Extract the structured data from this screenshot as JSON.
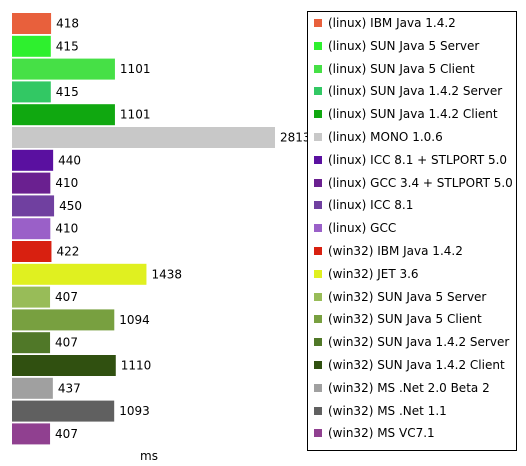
{
  "chart_data": {
    "type": "bar",
    "orientation": "horizontal",
    "xlabel": "ms",
    "xlim": [
      0,
      2813
    ],
    "grid": false,
    "legend_position": "right",
    "categories": [
      "(linux) IBM Java 1.4.2",
      "(linux) SUN Java 5 Server",
      "(linux) SUN Java 5 Client",
      "(linux) SUN Java 1.4.2 Server",
      "(linux) SUN Java 1.4.2 Client",
      "(linux) MONO 1.0.6",
      "(linux) ICC 8.1 + STLPORT 5.0",
      "(linux) GCC 3.4 + STLPORT 5.0",
      "(linux) ICC 8.1",
      "(linux) GCC",
      "(win32) IBM Java 1.4.2",
      "(win32) JET 3.6",
      "(win32) SUN Java 5 Server",
      "(win32) SUN Java 5 Client",
      "(win32) SUN Java 1.4.2 Server",
      "(win32) SUN Java 1.4.2 Client",
      "(win32) MS .Net 2.0 Beta 2",
      "(win32) MS .Net 1.1",
      "(win32) MS VC7.1"
    ],
    "values": [
      418,
      415,
      1101,
      415,
      1101,
      2813,
      440,
      410,
      450,
      410,
      422,
      1438,
      407,
      1094,
      407,
      1110,
      437,
      1093,
      407
    ],
    "value_labels": [
      "418",
      "415",
      "1101",
      "415",
      "1101",
      "2813",
      "440",
      "410",
      "450",
      "410",
      "422",
      "1438",
      "407",
      "1094",
      "407",
      "1110",
      "437",
      "1093",
      "407"
    ],
    "colors": [
      "#e8603c",
      "#2ef02e",
      "#46e046",
      "#32c864",
      "#10a810",
      "#c8c8c8",
      "#5a10a0",
      "#6a2090",
      "#7040a0",
      "#9a60c8",
      "#d82010",
      "#e0f020",
      "#98bc58",
      "#78a040",
      "#507828",
      "#305010",
      "#a0a0a0",
      "#606060",
      "#904090"
    ]
  }
}
